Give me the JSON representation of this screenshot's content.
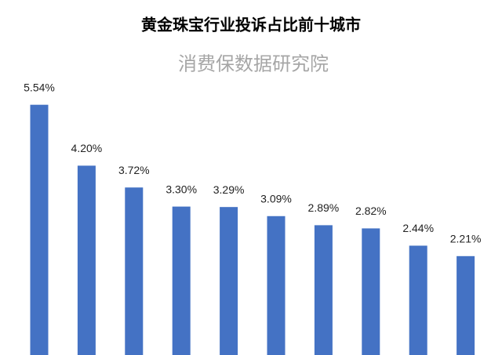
{
  "chart_data": {
    "type": "bar",
    "title": "黄金珠宝行业投诉占比前十城市",
    "subtitle": "消费保数据研究院",
    "categories": [
      null,
      null,
      null,
      null,
      null,
      null,
      null,
      null,
      null,
      null
    ],
    "values": [
      5.54,
      4.2,
      3.72,
      3.3,
      3.29,
      3.09,
      2.89,
      2.82,
      2.44,
      2.21
    ],
    "value_labels": [
      "5.54%",
      "4.20%",
      "3.72%",
      "3.30%",
      "3.29%",
      "3.09%",
      "2.89%",
      "2.82%",
      "2.44%",
      "2.21%"
    ],
    "color": "#4472c4"
  }
}
